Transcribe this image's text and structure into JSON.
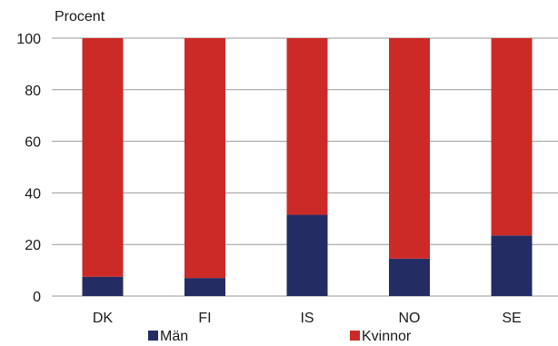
{
  "chart_data": {
    "type": "bar",
    "stacked": true,
    "ylabel": "Procent",
    "xlabel": "",
    "title": "",
    "ylim": [
      0,
      100
    ],
    "yticks": [
      0,
      20,
      40,
      60,
      80,
      100
    ],
    "grid": true,
    "legend_position": "bottom",
    "categories": [
      "DK",
      "FI",
      "IS",
      "NO",
      "SE"
    ],
    "series": [
      {
        "name": "Män",
        "color": "#232c63",
        "values": [
          7.5,
          7,
          31.5,
          14.5,
          23.5
        ]
      },
      {
        "name": "Kvinnor",
        "color": "#cc2a27",
        "values": [
          92.5,
          93,
          68.5,
          85.5,
          76.5
        ]
      }
    ]
  }
}
